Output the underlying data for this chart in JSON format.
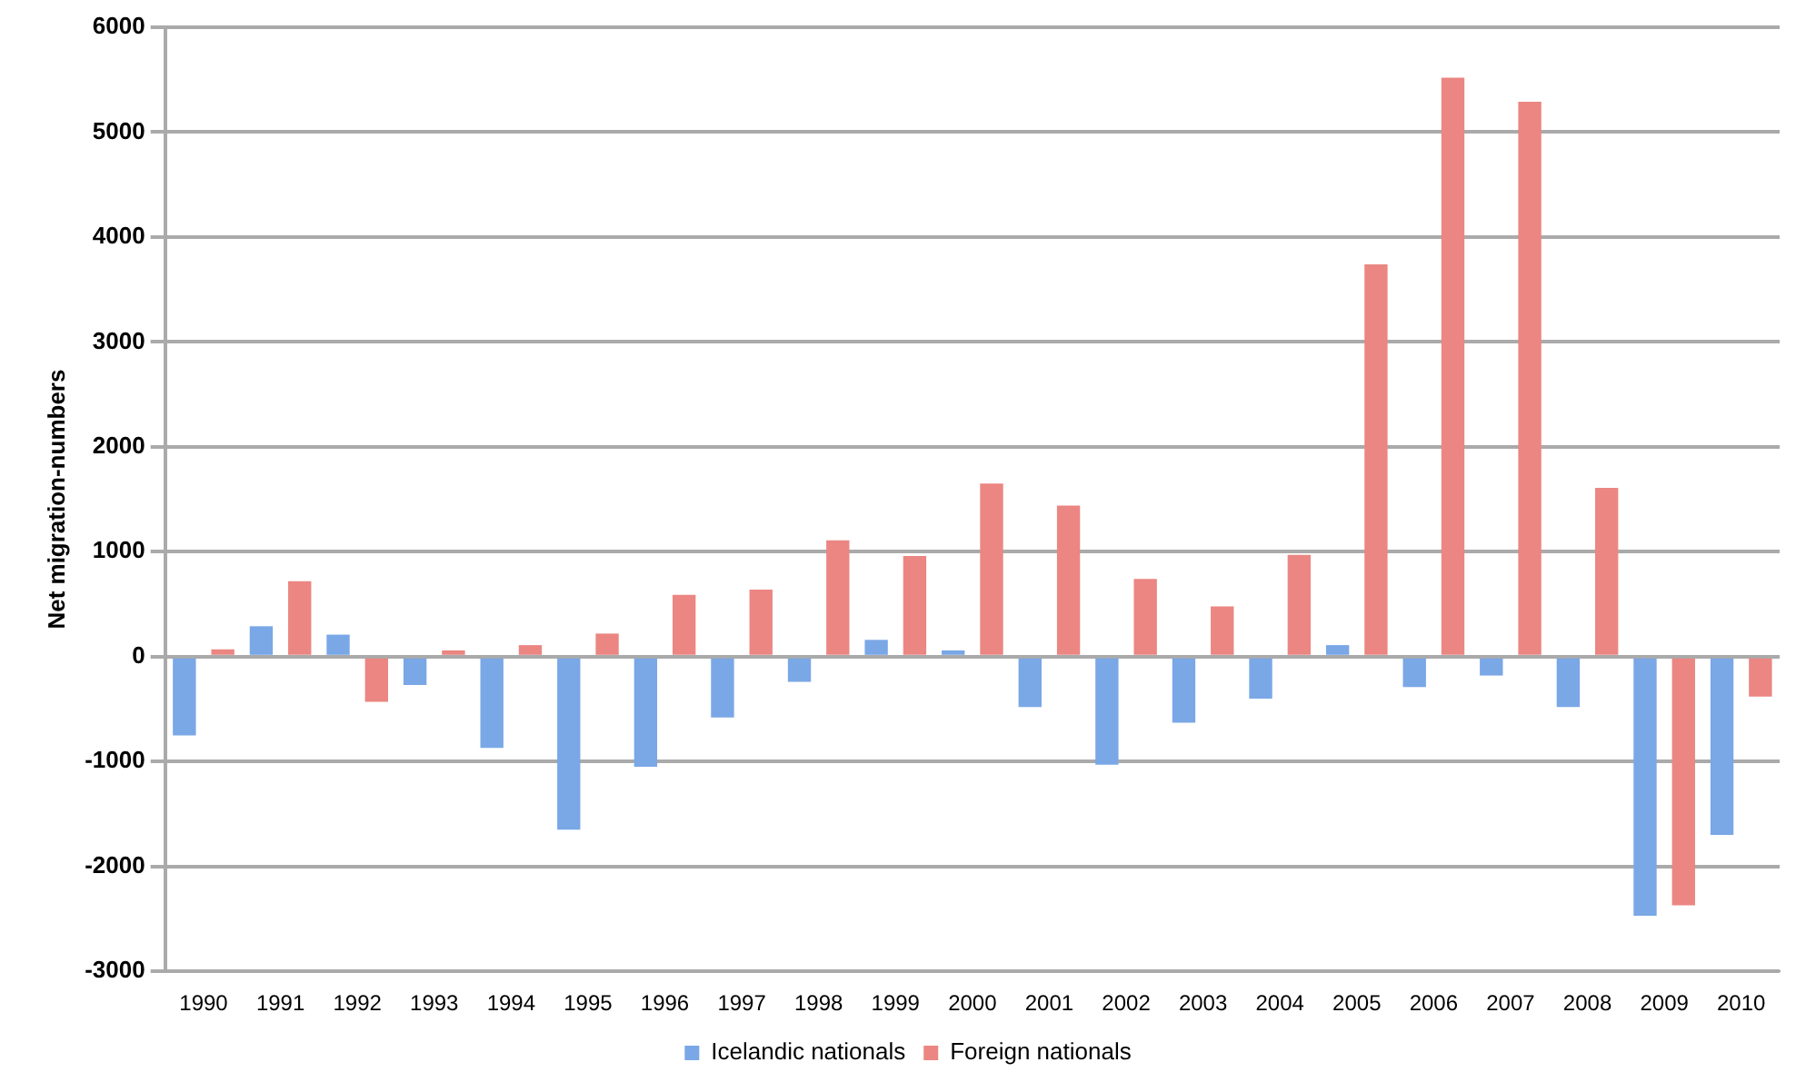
{
  "chart_data": {
    "type": "bar",
    "ylabel": "Net migration-numbers",
    "categories": [
      "1990",
      "1991",
      "1992",
      "1993",
      "1994",
      "1995",
      "1996",
      "1997",
      "1998",
      "1999",
      "2000",
      "2001",
      "2002",
      "2003",
      "2004",
      "2005",
      "2006",
      "2007",
      "2008",
      "2009",
      "2010"
    ],
    "series": [
      {
        "name": "Icelandic nationals",
        "color": "#7aa7e6",
        "values": [
          -750,
          290,
          210,
          -270,
          -870,
          -1650,
          -1050,
          -580,
          -240,
          160,
          60,
          -480,
          -1030,
          -630,
          -400,
          110,
          -290,
          -180,
          -480,
          -2470,
          -1700
        ]
      },
      {
        "name": "Foreign nationals",
        "color": "#eb8682",
        "values": [
          70,
          720,
          -430,
          60,
          110,
          220,
          590,
          640,
          1110,
          960,
          1650,
          1440,
          740,
          480,
          970,
          3740,
          5520,
          5290,
          1610,
          -2370,
          -380
        ]
      }
    ],
    "ylim": [
      -3000,
      6000
    ],
    "yticks": [
      -3000,
      -2000,
      -1000,
      0,
      1000,
      2000,
      3000,
      4000,
      5000,
      6000
    ],
    "grid": "y",
    "legend": "bottom"
  }
}
